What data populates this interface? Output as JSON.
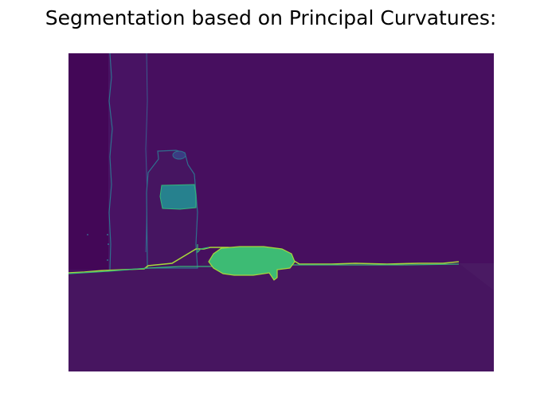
{
  "figure": {
    "title": "Segmentation based on Principal Curvatures:"
  },
  "colors": {
    "background": "#ffffff",
    "title_text": "#000000",
    "wall_region": "#470f5f",
    "left_dark_panel": "#430757",
    "left_wall_strip": "#481363",
    "bottle_body": "#461561",
    "floor_region": "#471560",
    "bottle_label": "#26818e",
    "green_object": "#3dbb74",
    "boundary_line": "#35b779",
    "boundary_accent": "#a8d83a",
    "contour_edge": "#2f6f8e"
  }
}
